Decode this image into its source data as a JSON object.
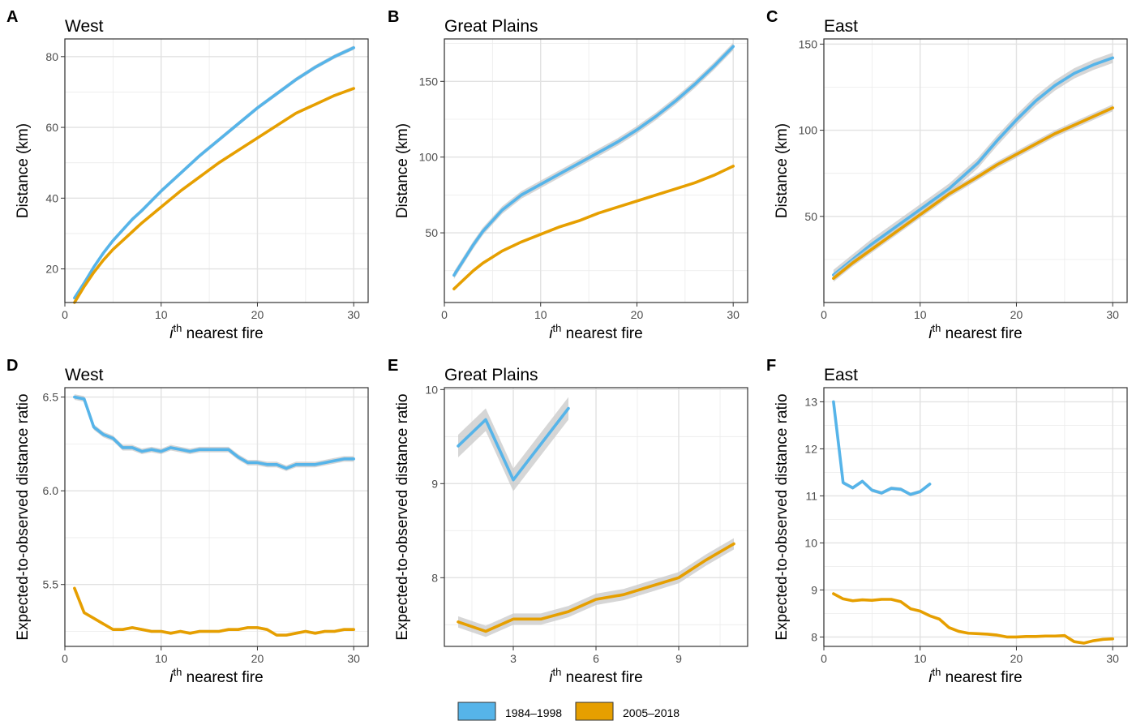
{
  "colors": {
    "period_1984_1998": "#56B4E9",
    "period_2005_2018": "#E69F00",
    "band": "#c8c8c8",
    "grid": "#ebebeb",
    "border": "#333333"
  },
  "legend": {
    "placement": "bottom-center",
    "items": [
      {
        "label": "1984–1998",
        "color": "#56B4E9"
      },
      {
        "label": "2005–2018",
        "color": "#E69F00"
      }
    ]
  },
  "chart_data": [
    {
      "panel": "A",
      "title": "West",
      "type": "line",
      "xlabel_pre": "i",
      "xlabel_sup": "th",
      "xlabel_post": " nearest fire",
      "ylabel": "Distance (km)",
      "xlim": [
        0,
        31.5
      ],
      "ylim": [
        10.5,
        85
      ],
      "xticks": [
        0,
        10,
        20,
        30
      ],
      "yticks": [
        20,
        40,
        60,
        80
      ],
      "series": [
        {
          "name": "1984–1998",
          "x": [
            1,
            2,
            3,
            4,
            5,
            6,
            7,
            8,
            10,
            12,
            14,
            16,
            18,
            20,
            22,
            24,
            26,
            28,
            30
          ],
          "y": [
            11.8,
            16,
            20.5,
            24.5,
            28,
            31,
            34,
            36.5,
            42,
            47,
            52,
            56.5,
            61,
            65.5,
            69.5,
            73.5,
            77,
            80,
            82.5
          ],
          "band": 0.6
        },
        {
          "name": "2005–2018",
          "x": [
            1,
            2,
            3,
            4,
            5,
            6,
            7,
            8,
            10,
            12,
            14,
            16,
            18,
            20,
            22,
            24,
            26,
            28,
            30
          ],
          "y": [
            10.5,
            15,
            19,
            22.5,
            25.5,
            28,
            30.5,
            33,
            37.5,
            42,
            46,
            50,
            53.5,
            57,
            60.5,
            64,
            66.5,
            69,
            71
          ],
          "band": 0.3
        }
      ]
    },
    {
      "panel": "B",
      "title": "Great Plains",
      "type": "line",
      "xlabel_pre": "i",
      "xlabel_sup": "th",
      "xlabel_post": " nearest fire",
      "ylabel": "Distance (km)",
      "xlim": [
        0,
        31.5
      ],
      "ylim": [
        4,
        178
      ],
      "xticks": [
        0,
        10,
        20,
        30
      ],
      "yticks": [
        50,
        100,
        150
      ],
      "series": [
        {
          "name": "1984–1998",
          "x": [
            1,
            2,
            3,
            4,
            5,
            6,
            7,
            8,
            10,
            12,
            14,
            16,
            18,
            20,
            22,
            24,
            26,
            28,
            30
          ],
          "y": [
            22,
            32,
            42,
            51,
            58,
            65,
            70,
            75,
            82,
            89,
            96,
            103,
            110,
            118,
            127,
            137,
            148,
            160,
            173
          ],
          "band": 2.5
        },
        {
          "name": "2005–2018",
          "x": [
            1,
            2,
            3,
            4,
            5,
            6,
            7,
            8,
            10,
            12,
            14,
            16,
            18,
            20,
            22,
            24,
            26,
            28,
            30
          ],
          "y": [
            13,
            19,
            25,
            30,
            34,
            38,
            41,
            44,
            49,
            54,
            58,
            63,
            67,
            71,
            75,
            79,
            83,
            88,
            94
          ],
          "band": 0.8
        }
      ]
    },
    {
      "panel": "C",
      "title": "East",
      "type": "line",
      "xlabel_pre": "i",
      "xlabel_sup": "th",
      "xlabel_post": " nearest fire",
      "ylabel": "Distance (km)",
      "xlim": [
        0,
        31.5
      ],
      "ylim": [
        0,
        153
      ],
      "xticks": [
        0,
        10,
        20,
        30
      ],
      "yticks": [
        50,
        100,
        150
      ],
      "series": [
        {
          "name": "1984–1998",
          "x": [
            1,
            3,
            5,
            7,
            10,
            13,
            16,
            18,
            20,
            22,
            24,
            26,
            28,
            30
          ],
          "y": [
            16,
            25,
            34,
            42,
            54,
            66,
            81,
            94,
            106,
            117,
            126,
            133,
            138,
            142
          ],
          "band": 3
        },
        {
          "name": "2005–2018",
          "x": [
            1,
            3,
            5,
            7,
            10,
            13,
            16,
            18,
            20,
            22,
            24,
            26,
            28,
            30
          ],
          "y": [
            14,
            23,
            31,
            39,
            51,
            63,
            73,
            80,
            86,
            92,
            98,
            103,
            108,
            113
          ],
          "band": 2
        }
      ]
    },
    {
      "panel": "D",
      "title": "West",
      "type": "line",
      "xlabel_pre": "i",
      "xlabel_sup": "th",
      "xlabel_post": " nearest fire",
      "ylabel": "Expected-to-observed distance ratio",
      "xlim": [
        0,
        31.5
      ],
      "ylim": [
        5.17,
        6.55
      ],
      "xticks": [
        0,
        10,
        20,
        30
      ],
      "yticks": [
        5.5,
        6.0,
        6.5
      ],
      "series": [
        {
          "name": "1984–1998",
          "x": [
            1,
            2,
            3,
            4,
            5,
            6,
            7,
            8,
            9,
            10,
            11,
            12,
            13,
            14,
            15,
            16,
            17,
            18,
            19,
            20,
            21,
            22,
            23,
            24,
            25,
            26,
            27,
            28,
            29,
            30
          ],
          "y": [
            6.5,
            6.49,
            6.34,
            6.3,
            6.28,
            6.23,
            6.23,
            6.21,
            6.22,
            6.21,
            6.23,
            6.22,
            6.21,
            6.22,
            6.22,
            6.22,
            6.22,
            6.18,
            6.15,
            6.15,
            6.14,
            6.14,
            6.12,
            6.14,
            6.14,
            6.14,
            6.15,
            6.16,
            6.17,
            6.17
          ],
          "band": 0.015
        },
        {
          "name": "2005–2018",
          "x": [
            1,
            2,
            3,
            4,
            5,
            6,
            7,
            8,
            9,
            10,
            11,
            12,
            13,
            14,
            15,
            16,
            17,
            18,
            19,
            20,
            21,
            22,
            23,
            24,
            25,
            26,
            27,
            28,
            29,
            30
          ],
          "y": [
            5.48,
            5.35,
            5.32,
            5.29,
            5.26,
            5.26,
            5.27,
            5.26,
            5.25,
            5.25,
            5.24,
            5.25,
            5.24,
            5.25,
            5.25,
            5.25,
            5.26,
            5.26,
            5.27,
            5.27,
            5.26,
            5.23,
            5.23,
            5.24,
            5.25,
            5.24,
            5.25,
            5.25,
            5.26,
            5.26
          ],
          "band": 0.008
        }
      ]
    },
    {
      "panel": "E",
      "title": "Great Plains",
      "type": "line",
      "xlabel_pre": "i",
      "xlabel_sup": "th",
      "xlabel_post": " nearest fire",
      "ylabel": "Expected-to-observed distance ratio",
      "xlim": [
        0.5,
        11.5
      ],
      "ylim": [
        7.27,
        10.02
      ],
      "xticks": [
        3,
        6,
        9
      ],
      "yticks": [
        8,
        9,
        10
      ],
      "series": [
        {
          "name": "1984–1998",
          "x": [
            1,
            2,
            3,
            4,
            5
          ],
          "y": [
            9.4,
            9.68,
            9.04,
            9.42,
            9.8
          ],
          "band": 0.12
        },
        {
          "name": "2005–2018",
          "x": [
            1,
            2,
            3,
            4,
            5,
            6,
            7,
            8,
            9,
            10,
            11
          ],
          "y": [
            7.53,
            7.43,
            7.56,
            7.56,
            7.64,
            7.77,
            7.82,
            7.91,
            8.0,
            8.19,
            8.36
          ],
          "band": 0.06
        }
      ]
    },
    {
      "panel": "F",
      "title": "East",
      "type": "line",
      "xlabel_pre": "i",
      "xlabel_sup": "th",
      "xlabel_post": " nearest fire",
      "ylabel": "Expected-to-observed distance ratio",
      "xlim": [
        0,
        31.5
      ],
      "ylim": [
        7.8,
        13.3
      ],
      "xticks": [
        0,
        10,
        20,
        30
      ],
      "yticks": [
        8,
        9,
        10,
        11,
        12,
        13
      ],
      "series": [
        {
          "name": "1984–1998",
          "x": [
            1,
            2,
            3,
            4,
            5,
            6,
            7,
            8,
            9,
            10,
            11
          ],
          "y": [
            13.0,
            11.28,
            11.17,
            11.31,
            11.12,
            11.06,
            11.16,
            11.14,
            11.03,
            11.09,
            11.25
          ],
          "band": 0.04
        },
        {
          "name": "2005–2018",
          "x": [
            1,
            2,
            3,
            4,
            5,
            6,
            7,
            8,
            9,
            10,
            11,
            12,
            13,
            14,
            15,
            16,
            17,
            18,
            19,
            20,
            21,
            22,
            23,
            24,
            25,
            26,
            27,
            28,
            29,
            30
          ],
          "y": [
            8.92,
            8.81,
            8.77,
            8.79,
            8.78,
            8.8,
            8.8,
            8.75,
            8.6,
            8.55,
            8.45,
            8.38,
            8.2,
            8.12,
            8.08,
            8.07,
            8.06,
            8.04,
            8.0,
            8.0,
            8.01,
            8.01,
            8.02,
            8.02,
            8.03,
            7.9,
            7.87,
            7.92,
            7.95,
            7.96
          ],
          "band": 0.02
        }
      ]
    }
  ]
}
